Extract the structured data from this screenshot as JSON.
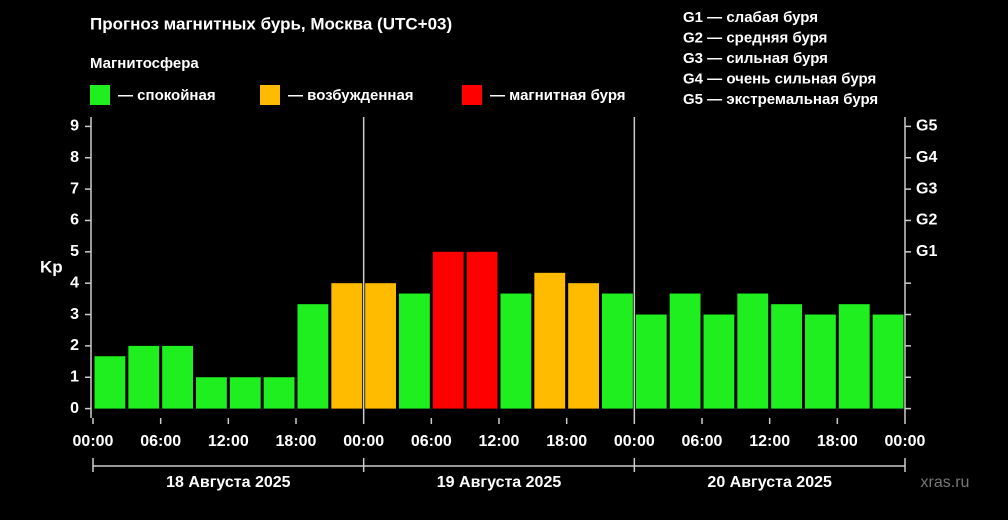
{
  "chart_data": {
    "type": "bar",
    "title": "Прогноз магнитных бурь, Москва (UTC+03)",
    "legend_title": "Магнитосфера",
    "legend": [
      {
        "label": "— спокойная",
        "color": "#1fef1f"
      },
      {
        "label": "— возбужденная",
        "color": "#ffbb00"
      },
      {
        "label": "— магнитная буря",
        "color": "#ff0000"
      }
    ],
    "scale_legend": [
      "G1 — слабая буря",
      "G2 — средняя буря",
      "G3 — сильная буря",
      "G4 — очень сильная буря",
      "G5 — экстремальная буря"
    ],
    "y_label": "Kp",
    "x": [
      1.5,
      4.5,
      7.5,
      10.5,
      13.5,
      16.5,
      19.5,
      22.5,
      25.5,
      28.5,
      31.5,
      34.5,
      37.5,
      40.5,
      43.5,
      46.5,
      49.5,
      52.5,
      55.5,
      58.5,
      61.5,
      64.5,
      67.5,
      70.5
    ],
    "values": [
      1.67,
      2,
      2,
      1,
      1,
      1,
      3.33,
      4,
      4,
      3.67,
      5,
      5,
      3.67,
      4.33,
      4,
      3.67,
      3,
      3.67,
      3,
      3.67,
      3.33,
      3,
      3.33,
      3
    ],
    "colors": [
      "#1fef1f",
      "#1fef1f",
      "#1fef1f",
      "#1fef1f",
      "#1fef1f",
      "#1fef1f",
      "#1fef1f",
      "#ffbb00",
      "#ffbb00",
      "#1fef1f",
      "#ff0000",
      "#ff0000",
      "#1fef1f",
      "#ffbb00",
      "#ffbb00",
      "#1fef1f",
      "#1fef1f",
      "#1fef1f",
      "#1fef1f",
      "#1fef1f",
      "#1fef1f",
      "#1fef1f",
      "#1fef1f",
      "#1fef1f"
    ],
    "xlim": [
      0,
      72
    ],
    "xticks": [
      {
        "value": 0,
        "label": "00:00"
      },
      {
        "value": 6,
        "label": "06:00"
      },
      {
        "value": 12,
        "label": "12:00"
      },
      {
        "value": 18,
        "label": "18:00"
      },
      {
        "value": 24,
        "label": "00:00"
      },
      {
        "value": 30,
        "label": "06:00"
      },
      {
        "value": 36,
        "label": "12:00"
      },
      {
        "value": 42,
        "label": "18:00"
      },
      {
        "value": 48,
        "label": "00:00"
      },
      {
        "value": 54,
        "label": "06:00"
      },
      {
        "value": 60,
        "label": "12:00"
      },
      {
        "value": 66,
        "label": "18:00"
      },
      {
        "value": 72,
        "label": "00:00"
      }
    ],
    "day_labels": [
      "18 Августа 2025",
      "19 Августа 2025",
      "20 Августа 2025"
    ],
    "ylim": [
      -0.3,
      9.3
    ],
    "yticks": [
      0,
      1,
      2,
      3,
      4,
      5,
      6,
      7,
      8,
      9
    ],
    "y2lim": [
      -0.3,
      9.3
    ],
    "y2ticks": [
      {
        "value": 5,
        "label": "G1"
      },
      {
        "value": 6,
        "label": "G2"
      },
      {
        "value": 7,
        "label": "G3"
      },
      {
        "value": 8,
        "label": "G4"
      },
      {
        "value": 9,
        "label": "G5"
      }
    ],
    "watermark": "xras.ru"
  }
}
